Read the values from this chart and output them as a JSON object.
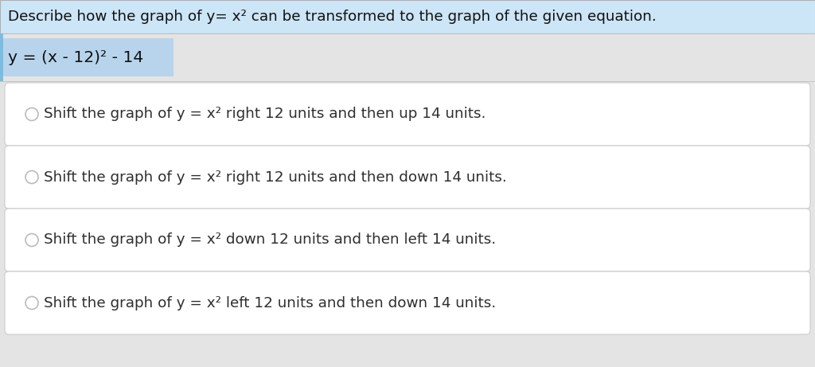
{
  "title": "Describe how the graph of y= x² can be transformed to the graph of the given equation.",
  "title_bg": "#cce5f7",
  "title_color": "#111111",
  "title_fontsize": 13.2,
  "question_label": "y = (x - 12)² - 14",
  "question_label_bg": "#b8d4ed",
  "question_area_bg": "#e4e4e4",
  "options": [
    "Shift the graph of y = x² right 12 units and then up 14 units.",
    "Shift the graph of y = x² right 12 units and then down 14 units.",
    "Shift the graph of y = x² down 12 units and then left 14 units.",
    "Shift the graph of y = x² left 12 units and then down 14 units."
  ],
  "option_bg": "#ffffff",
  "option_border": "#cccccc",
  "option_fontsize": 13.2,
  "option_color": "#2e2e2e",
  "radio_color": "#bbbbbb",
  "outer_bg": "#e4e4e4",
  "fig_width": 10.24,
  "fig_height": 4.61,
  "dpi": 100
}
